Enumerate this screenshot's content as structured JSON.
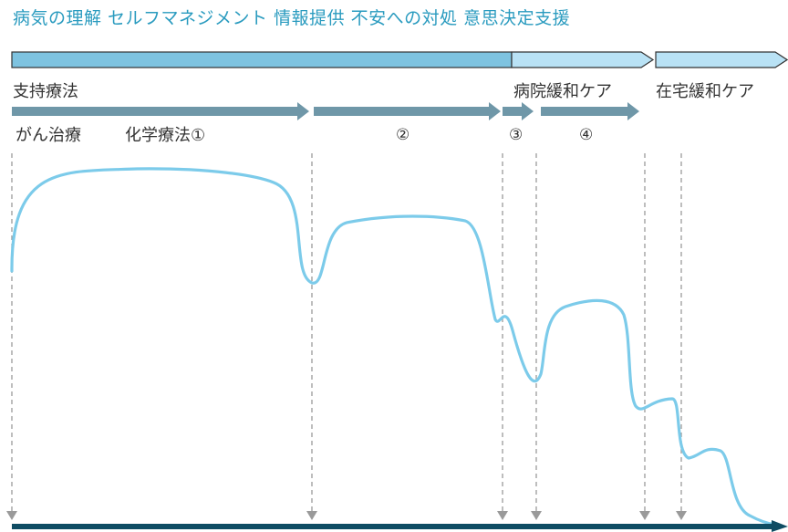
{
  "header": {
    "title": "病気の理解  セルフマネジメント  情報提供  不安への対処  意思決定支援"
  },
  "labels": {
    "supportive_care": "支持療法",
    "hospital_palliative": "病院緩和ケア",
    "home_palliative": "在宅緩和ケア",
    "cancer_treatment": "がん治療",
    "chemo_1": "化学療法①",
    "chemo_2": "②",
    "chemo_3": "③",
    "chemo_4": "④"
  },
  "colors": {
    "title_text": "#2a9bbf",
    "band_dark": "#7ec3e0",
    "band_light": "#b9e2f5",
    "band_stroke": "#333333",
    "treatment_arrow": "#6f97a8",
    "curve": "#7ccbea",
    "dashed_line": "#9a9a9a",
    "time_axis": "#0f4c63"
  },
  "icons": {
    "divider_marker": "triangle-down-icon",
    "axis_head": "arrow-right-icon"
  }
}
